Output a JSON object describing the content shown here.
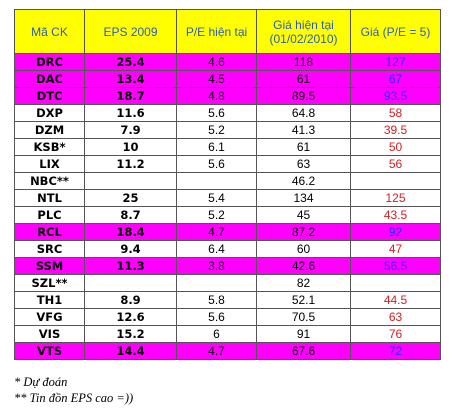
{
  "headers": [
    "Mã CK",
    "EPS 2009",
    "P/E hiện tại",
    "Giá hiện tại (01/02/2010)",
    "Giá (P/E = 5)"
  ],
  "rows": [
    {
      "code": "DRC",
      "eps": "25.4",
      "pe": "4.6",
      "price": "118",
      "fair": "127",
      "highlight": true,
      "fair_color": "blue"
    },
    {
      "code": "DAC",
      "eps": "13.4",
      "pe": "4.5",
      "price": "61",
      "fair": "67",
      "highlight": true,
      "fair_color": "blue"
    },
    {
      "code": "DTC",
      "eps": "18.7",
      "pe": "4.8",
      "price": "89.5",
      "fair": "93.5",
      "highlight": true,
      "fair_color": "blue"
    },
    {
      "code": "DXP",
      "eps": "11.6",
      "pe": "5.6",
      "price": "64.8",
      "fair": "58",
      "highlight": false,
      "fair_color": "red"
    },
    {
      "code": "DZM",
      "eps": "7.9",
      "pe": "5.2",
      "price": "41.3",
      "fair": "39.5",
      "highlight": false,
      "fair_color": "red"
    },
    {
      "code": "KSB*",
      "eps": "10",
      "pe": "6.1",
      "price": "61",
      "fair": "50",
      "highlight": false,
      "fair_color": "red"
    },
    {
      "code": "LIX",
      "eps": "11.2",
      "pe": "5.6",
      "price": "63",
      "fair": "56",
      "highlight": false,
      "fair_color": "red"
    },
    {
      "code": "NBC**",
      "eps": "",
      "pe": "",
      "price": "46.2",
      "fair": "",
      "highlight": false,
      "fair_color": "red"
    },
    {
      "code": "NTL",
      "eps": "25",
      "pe": "5.4",
      "price": "134",
      "fair": "125",
      "highlight": false,
      "fair_color": "red"
    },
    {
      "code": "PLC",
      "eps": "8.7",
      "pe": "5.2",
      "price": "45",
      "fair": "43.5",
      "highlight": false,
      "fair_color": "red"
    },
    {
      "code": "RCL",
      "eps": "18.4",
      "pe": "4.7",
      "price": "87.2",
      "fair": "92",
      "highlight": true,
      "fair_color": "blue"
    },
    {
      "code": "SRC",
      "eps": "9.4",
      "pe": "6.4",
      "price": "60",
      "fair": "47",
      "highlight": false,
      "fair_color": "red"
    },
    {
      "code": "SSM",
      "eps": "11.3",
      "pe": "3.8",
      "price": "42.6",
      "fair": "56.5",
      "highlight": true,
      "fair_color": "blue"
    },
    {
      "code": "SZL**",
      "eps": "",
      "pe": "",
      "price": "82",
      "fair": "",
      "highlight": false,
      "fair_color": "red"
    },
    {
      "code": "TH1",
      "eps": "8.9",
      "pe": "5.8",
      "price": "52.1",
      "fair": "44.5",
      "highlight": false,
      "fair_color": "red"
    },
    {
      "code": "VFG",
      "eps": "12.6",
      "pe": "5.6",
      "price": "70.5",
      "fair": "63",
      "highlight": false,
      "fair_color": "red"
    },
    {
      "code": "VIS",
      "eps": "15.2",
      "pe": "6",
      "price": "91",
      "fair": "76",
      "highlight": false,
      "fair_color": "red"
    },
    {
      "code": "VTS",
      "eps": "14.4",
      "pe": "4.7",
      "price": "67.6",
      "fair": "72",
      "highlight": true,
      "fair_color": "blue"
    }
  ],
  "notes": [
    "* Dự đoán",
    "** Tin đồn EPS cao =))"
  ],
  "colors": {
    "header_bg": "#ffff00",
    "header_text": "#2a5fb0",
    "highlight_row": "#ff00ff",
    "fair_red": "#d42020",
    "fair_blue": "#2b2bff"
  }
}
